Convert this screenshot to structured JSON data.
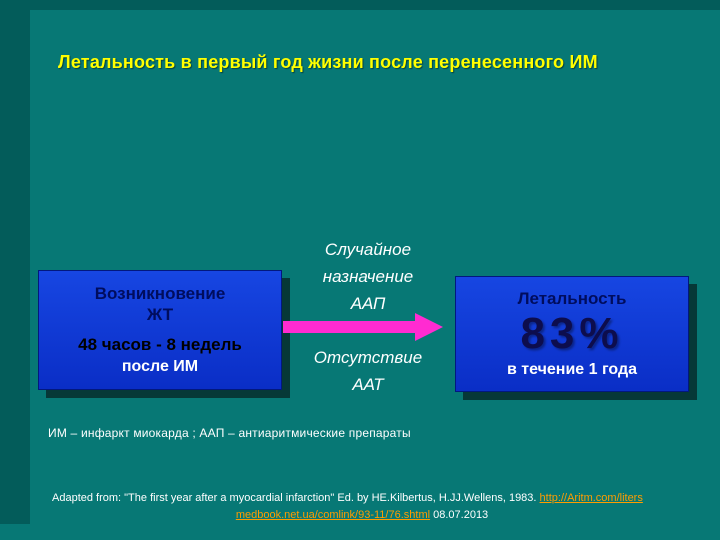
{
  "title": "Летальность в первый год жизни после перенесенного  ИМ",
  "left_box": {
    "line1": "Возникновение",
    "line2": "ЖТ",
    "line3": "48  часов -  8 недель",
    "line4": "после  ИМ"
  },
  "middle": {
    "top1": "Случайное",
    "top2": "назначение",
    "top3": "ААП",
    "bottom1": "Отсутствие",
    "bottom2": "ААТ"
  },
  "right_box": {
    "title": "Летальность",
    "value": "83%",
    "subtitle": "в  течение 1 года"
  },
  "footnote": "ИМ  –  инфаркт миокарда ;  ААП  –  антиаритмические препараты",
  "citation": {
    "line1_text": "Adapted from:  \"The first year after a myocardial infarction\" Ed. by HE.Kilbertus, H.JJ.Wellens, 1983. ",
    "line1_link": "http://Aritm.com/liters",
    "line2_link": "medbook.net.ua/comlink/93-11/76.shtml",
    "line2_date": "08.07.2013"
  },
  "colors": {
    "background": "#077875",
    "frame": "#035c5a",
    "box_blue": "#0c34cc",
    "arrow_magenta": "#ff2bd1",
    "title_yellow": "#ffff00",
    "link_orange": "#ff9c00"
  }
}
